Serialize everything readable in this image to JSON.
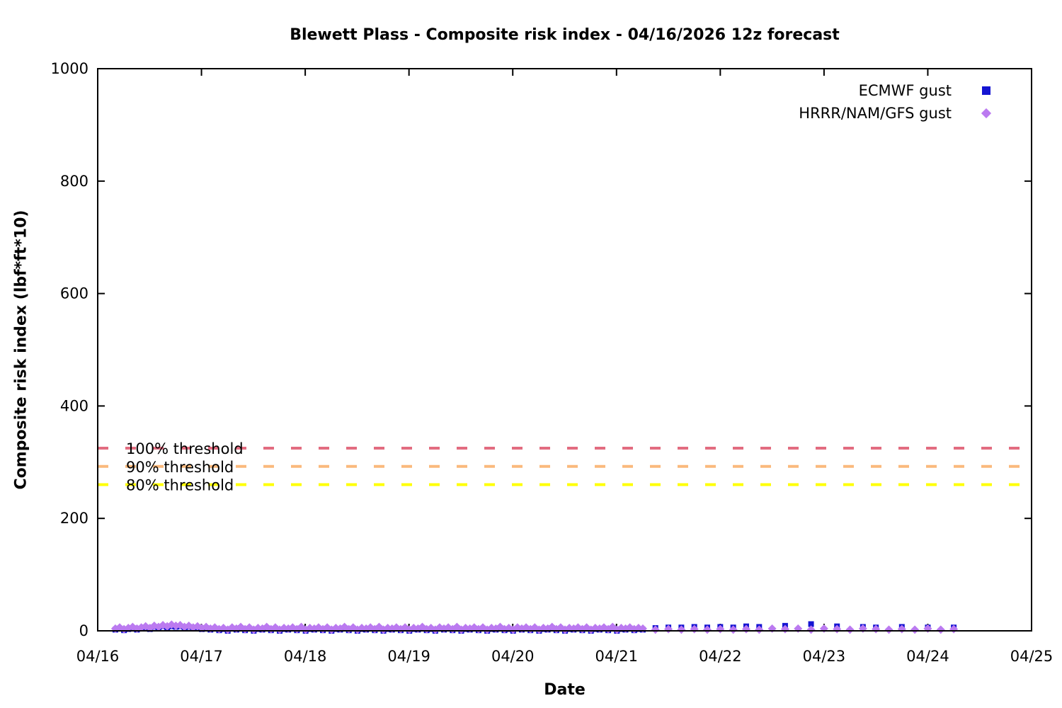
{
  "chart_data": {
    "type": "scatter",
    "title": "Blewett Plass - Composite risk index - 04/16/2026 12z forecast",
    "xlabel": "Date",
    "ylabel": "Composite risk index (lbf*ft*10)",
    "x_unit": "day of April 2026 (fractional)",
    "xlim": [
      16,
      25
    ],
    "ylim": [
      0,
      1000
    ],
    "grid": false,
    "legend_position": "inside-top-right",
    "x_ticks": [
      {
        "value": 16,
        "label": "04/16"
      },
      {
        "value": 17,
        "label": "04/17"
      },
      {
        "value": 18,
        "label": "04/18"
      },
      {
        "value": 19,
        "label": "04/19"
      },
      {
        "value": 20,
        "label": "04/20"
      },
      {
        "value": 21,
        "label": "04/21"
      },
      {
        "value": 22,
        "label": "04/22"
      },
      {
        "value": 23,
        "label": "04/23"
      },
      {
        "value": 24,
        "label": "04/24"
      },
      {
        "value": 25,
        "label": "04/25"
      }
    ],
    "y_ticks": [
      {
        "value": 0,
        "label": "0"
      },
      {
        "value": 200,
        "label": "200"
      },
      {
        "value": 400,
        "label": "400"
      },
      {
        "value": 600,
        "label": "600"
      },
      {
        "value": 800,
        "label": "800"
      },
      {
        "value": 1000,
        "label": "1000"
      }
    ],
    "thresholds": [
      {
        "label": "100% threshold",
        "value": 325,
        "color": "#e26c80"
      },
      {
        "label": "90% threshold",
        "value": 292.5,
        "color": "#fab97c"
      },
      {
        "label": "80% threshold",
        "value": 260,
        "color": "#ffff00"
      }
    ],
    "series": [
      {
        "name": "ECMWF gust",
        "marker": "square",
        "color": "#1414d2",
        "segments": [
          {
            "x_start": 16.17,
            "x_step": 0.04167,
            "values": [
              2,
              4,
              1,
              3,
              5,
              2,
              4,
              6,
              3,
              7,
              5,
              8,
              6,
              8,
              7,
              8,
              5,
              7,
              4,
              6,
              3,
              5,
              2,
              4,
              1,
              3,
              0,
              4,
              2,
              5,
              1,
              4,
              0,
              3,
              2,
              5,
              1,
              4,
              0,
              3,
              2,
              4,
              1,
              5,
              0,
              3,
              2,
              4,
              1,
              4,
              0,
              3,
              2,
              5,
              1,
              4,
              0,
              3,
              2,
              4,
              1,
              5,
              0,
              3,
              2,
              4,
              1,
              4,
              0,
              3,
              2,
              5,
              1,
              3,
              0,
              4,
              2,
              4,
              1,
              5,
              0,
              3,
              2,
              4,
              1,
              4,
              0,
              3,
              2,
              5,
              1,
              3,
              0,
              4,
              2,
              4,
              1,
              4,
              0,
              3,
              2,
              5,
              1,
              4,
              0,
              3,
              2,
              4,
              1,
              4,
              0,
              3,
              2,
              4,
              1,
              5,
              0,
              3,
              2,
              4,
              1,
              3,
              2
            ]
          },
          {
            "x_start": 21.375,
            "x_step": 0.125,
            "values": [
              5,
              6,
              6,
              7,
              6,
              7,
              6,
              8,
              7,
              null,
              9,
              null,
              12,
              null,
              8,
              null,
              7,
              6,
              null,
              7,
              null,
              6,
              null,
              6
            ]
          }
        ]
      },
      {
        "name": "HRRR/NAM/GFS gust",
        "marker": "diamond",
        "color": "#bb7af0",
        "segments": [
          {
            "x_start": 16.17,
            "x_step": 0.04167,
            "values": [
              4,
              6,
              3,
              5,
              7,
              4,
              6,
              8,
              5,
              9,
              7,
              10,
              8,
              11,
              9,
              10,
              7,
              9,
              6,
              8,
              5,
              7,
              4,
              6,
              3,
              5,
              2,
              6,
              4,
              7,
              3,
              6,
              2,
              5,
              4,
              7,
              3,
              6,
              2,
              5,
              4,
              6,
              3,
              7,
              2,
              5,
              4,
              6,
              3,
              6,
              2,
              5,
              4,
              7,
              3,
              6,
              2,
              5,
              4,
              6,
              3,
              7,
              2,
              5,
              4,
              6,
              3,
              6,
              2,
              5,
              4,
              7,
              3,
              5,
              2,
              6,
              4,
              6,
              3,
              7,
              2,
              5,
              4,
              6,
              3,
              6,
              2,
              5,
              4,
              7,
              3,
              5,
              2,
              6,
              4,
              6,
              3,
              6,
              2,
              5,
              4,
              7,
              3,
              6,
              2,
              5,
              4,
              6,
              3,
              6,
              2,
              5,
              4,
              6,
              3,
              7,
              2,
              5,
              4,
              6,
              3,
              5,
              4
            ]
          },
          {
            "x_start": 21.375,
            "x_step": 0.125,
            "values": [
              2,
              3,
              2,
              3,
              2,
              3,
              2,
              3,
              2,
              4,
              3,
              4,
              2,
              4,
              3,
              2,
              4,
              3,
              2,
              3,
              2,
              4,
              2,
              3
            ]
          }
        ]
      }
    ]
  }
}
